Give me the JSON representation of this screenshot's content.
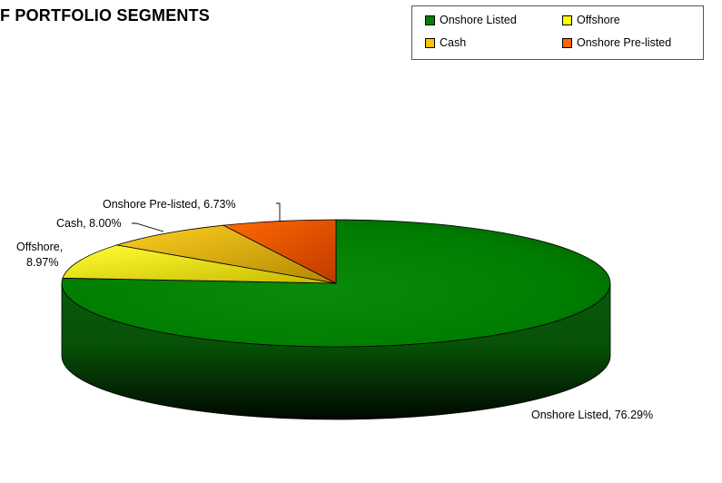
{
  "chart_data": {
    "type": "pie",
    "title": "F PORTFOLIO SEGMENTS",
    "slices": [
      {
        "name": "Onshore Listed",
        "value": 76.29,
        "label": "Onshore Listed, 76.29%",
        "color": "#008000"
      },
      {
        "name": "Offshore",
        "value": 8.97,
        "label_line1": "Offshore,",
        "label_line2": "8.97%",
        "color": "#ffff00"
      },
      {
        "name": "Cash",
        "value": 8.0,
        "label": "Cash, 8.00%",
        "color": "#ffc000"
      },
      {
        "name": "Onshore Pre-listed",
        "value": 6.73,
        "label": "Onshore Pre-listed, 6.73%",
        "color": "#ff6600"
      }
    ],
    "legend": {
      "placement": "top-right",
      "items": [
        {
          "label": "Onshore Listed",
          "color": "#008000"
        },
        {
          "label": "Offshore",
          "color": "#ffff00"
        },
        {
          "label": "Cash",
          "color": "#ffc000"
        },
        {
          "label": "Onshore Pre-listed",
          "color": "#ff6600"
        }
      ]
    }
  }
}
